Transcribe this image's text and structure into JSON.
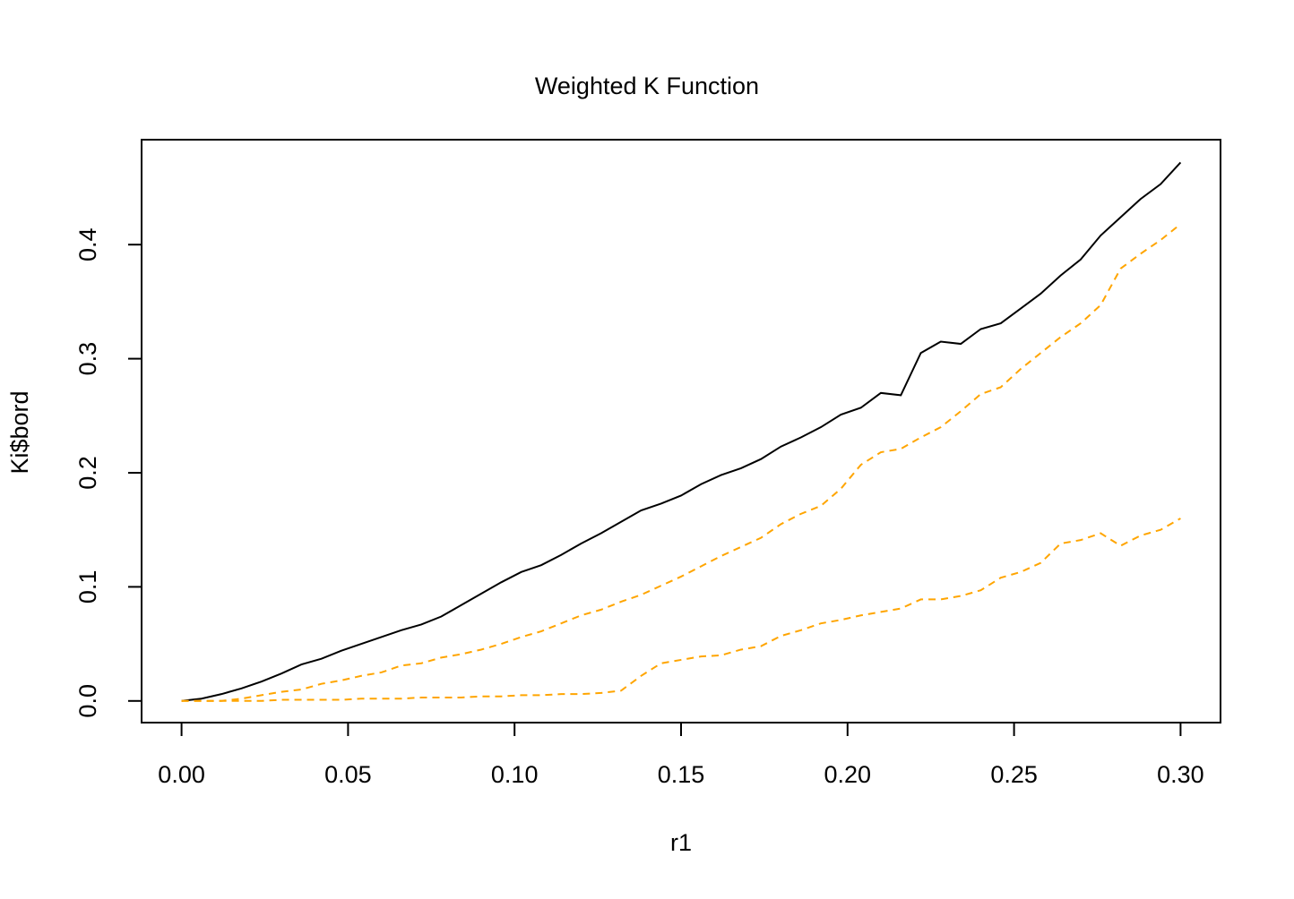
{
  "chart_data": {
    "type": "line",
    "title": "Weighted K Function",
    "xlabel": "r1",
    "ylabel": "Ki$bord",
    "x": [
      0,
      0.006,
      0.012,
      0.018,
      0.024,
      0.03,
      0.036,
      0.042,
      0.048,
      0.054,
      0.06,
      0.066,
      0.072,
      0.078,
      0.084,
      0.09,
      0.096,
      0.102,
      0.108,
      0.114,
      0.12,
      0.126,
      0.132,
      0.138,
      0.144,
      0.15,
      0.156,
      0.162,
      0.168,
      0.174,
      0.18,
      0.186,
      0.192,
      0.198,
      0.204,
      0.21,
      0.216,
      0.222,
      0.228,
      0.234,
      0.24,
      0.246,
      0.252,
      0.258,
      0.264,
      0.27,
      0.276,
      0.282,
      0.288,
      0.294,
      0.3
    ],
    "series": [
      {
        "color": "#000000",
        "dash": "solid",
        "values": [
          0,
          0.002,
          0.006,
          0.011,
          0.017,
          0.024,
          0.032,
          0.037,
          0.044,
          0.05,
          0.056,
          0.062,
          0.067,
          0.074,
          0.084,
          0.094,
          0.104,
          0.113,
          0.119,
          0.128,
          0.138,
          0.147,
          0.157,
          0.167,
          0.173,
          0.18,
          0.19,
          0.198,
          0.204,
          0.212,
          0.223,
          0.231,
          0.24,
          0.251,
          0.257,
          0.27,
          0.268,
          0.305,
          0.315,
          0.313,
          0.326,
          0.331,
          0.344,
          0.357,
          0.373,
          0.387,
          0.408,
          0.424,
          0.44,
          0.453,
          0.472
        ]
      },
      {
        "color": "#ffa500",
        "dash": "dashed",
        "values": [
          0,
          0,
          0,
          0.002,
          0.005,
          0.008,
          0.01,
          0.015,
          0.018,
          0.022,
          0.025,
          0.031,
          0.033,
          0.038,
          0.041,
          0.045,
          0.05,
          0.056,
          0.061,
          0.068,
          0.075,
          0.08,
          0.087,
          0.093,
          0.101,
          0.109,
          0.118,
          0.127,
          0.135,
          0.143,
          0.155,
          0.164,
          0.171,
          0.186,
          0.207,
          0.218,
          0.221,
          0.231,
          0.24,
          0.254,
          0.269,
          0.275,
          0.291,
          0.305,
          0.319,
          0.331,
          0.347,
          0.379,
          0.392,
          0.404,
          0.418
        ]
      },
      {
        "color": "#ffa500",
        "dash": "dashed",
        "values": [
          0,
          0,
          0,
          0,
          0,
          0.001,
          0.001,
          0.001,
          0.001,
          0.002,
          0.002,
          0.002,
          0.003,
          0.003,
          0.003,
          0.004,
          0.004,
          0.005,
          0.005,
          0.006,
          0.006,
          0.007,
          0.009,
          0.022,
          0.033,
          0.036,
          0.039,
          0.04,
          0.045,
          0.048,
          0.057,
          0.062,
          0.068,
          0.071,
          0.075,
          0.078,
          0.081,
          0.089,
          0.089,
          0.092,
          0.097,
          0.108,
          0.113,
          0.121,
          0.138,
          0.141,
          0.147,
          0.136,
          0.145,
          0.15,
          0.16
        ]
      }
    ],
    "xlim": [
      -0.012,
      0.312
    ],
    "ylim": [
      -0.019,
      0.492
    ],
    "xticks": [
      {
        "value": 0,
        "label": "0.00"
      },
      {
        "value": 0.05,
        "label": "0.05"
      },
      {
        "value": 0.1,
        "label": "0.10"
      },
      {
        "value": 0.15,
        "label": "0.15"
      },
      {
        "value": 0.2,
        "label": "0.20"
      },
      {
        "value": 0.25,
        "label": "0.25"
      },
      {
        "value": 0.3,
        "label": "0.30"
      }
    ],
    "yticks": [
      {
        "value": 0,
        "label": "0.0"
      },
      {
        "value": 0.1,
        "label": "0.1"
      },
      {
        "value": 0.2,
        "label": "0.2"
      },
      {
        "value": 0.3,
        "label": "0.3"
      },
      {
        "value": 0.4,
        "label": "0.4"
      }
    ]
  }
}
